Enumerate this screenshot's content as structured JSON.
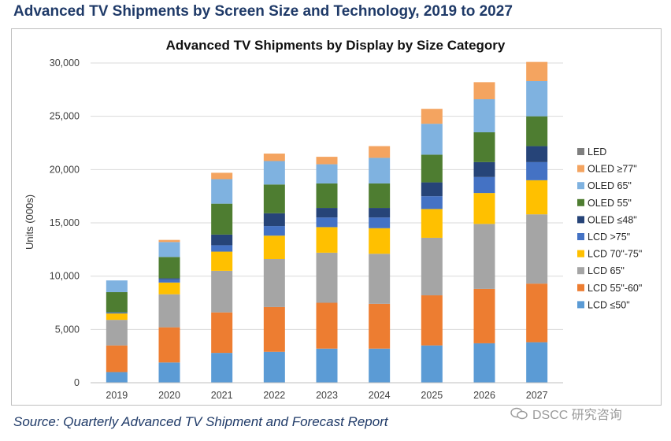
{
  "page": {
    "title": "Advanced TV Shipments by Screen Size and Technology, 2019 to 2027",
    "source": "Source:  Quarterly Advanced TV Shipment and Forecast Report",
    "watermark": "DSCC 研究咨询"
  },
  "chart_data": {
    "type": "bar",
    "stacked": true,
    "title": "Advanced TV Shipments by Display by Size Category",
    "xlabel": "",
    "ylabel": "Units (000s)",
    "ylim": [
      0,
      30000
    ],
    "yticks": [
      0,
      5000,
      10000,
      15000,
      20000,
      25000,
      30000
    ],
    "ytick_labels": [
      "0",
      "5,000",
      "10,000",
      "15,000",
      "20,000",
      "25,000",
      "30,000"
    ],
    "grid": true,
    "legend_position": "right",
    "categories": [
      "2019",
      "2020",
      "2021",
      "2022",
      "2023",
      "2024",
      "2025",
      "2026",
      "2027"
    ],
    "series": [
      {
        "name": "LCD  ≤50\"",
        "color": "#5b9bd5",
        "values": [
          1000,
          1900,
          2800,
          2900,
          3200,
          3200,
          3500,
          3700,
          3800
        ]
      },
      {
        "name": "LCD 55\"-60\"",
        "color": "#ed7d31",
        "values": [
          2500,
          3300,
          3800,
          4200,
          4300,
          4200,
          4700,
          5100,
          5500
        ]
      },
      {
        "name": "LCD 65\"",
        "color": "#a5a5a5",
        "values": [
          2400,
          3100,
          3900,
          4500,
          4700,
          4700,
          5400,
          6100,
          6500
        ]
      },
      {
        "name": "LCD 70\"-75\"",
        "color": "#ffc000",
        "values": [
          600,
          1100,
          1800,
          2200,
          2400,
          2400,
          2700,
          2900,
          3200
        ]
      },
      {
        "name": "LCD >75\"",
        "color": "#4472c4",
        "values": [
          100,
          300,
          600,
          900,
          900,
          1000,
          1200,
          1500,
          1700
        ]
      },
      {
        "name": "OLED  ≤48\"",
        "color": "#264478",
        "values": [
          0,
          100,
          1000,
          1200,
          900,
          900,
          1300,
          1400,
          1500
        ]
      },
      {
        "name": "OLED 55\"",
        "color": "#4e7d31",
        "values": [
          1900,
          2000,
          2900,
          2700,
          2300,
          2300,
          2600,
          2800,
          2800
        ]
      },
      {
        "name": "OLED 65\"",
        "color": "#7fb2e0",
        "values": [
          1100,
          1400,
          2300,
          2200,
          1800,
          2400,
          2900,
          3100,
          3300
        ]
      },
      {
        "name": "OLED ≥77\"",
        "color": "#f4a460",
        "values": [
          0,
          200,
          600,
          700,
          700,
          1100,
          1400,
          1600,
          1800
        ]
      },
      {
        "name": "LED",
        "color": "#7f7f7f",
        "values": [
          0,
          0,
          0,
          0,
          0,
          0,
          0,
          0,
          0
        ]
      }
    ]
  }
}
